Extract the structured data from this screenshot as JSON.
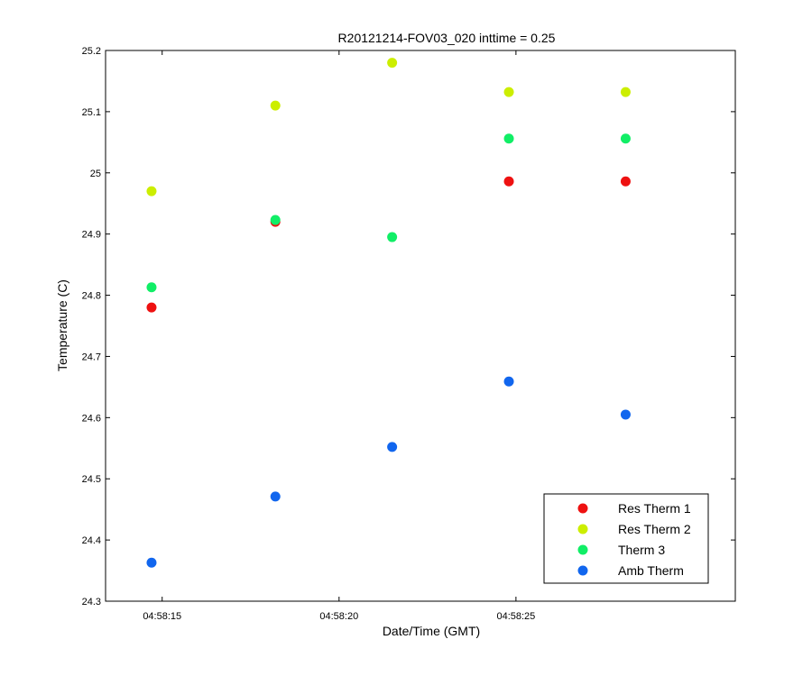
{
  "chart_data": {
    "type": "scatter",
    "title": "R20121214-FOV03_020 inttime = 0.25",
    "xlabel": "Date/Time (GMT)",
    "ylabel": "Temperature (C)",
    "xlim": [
      "04:58:13.4",
      "04:58:31.2"
    ],
    "ylim": [
      24.3,
      25.2
    ],
    "x_ticks": [
      "04:58:15",
      "04:58:20",
      "04:58:25"
    ],
    "y_ticks": [
      "24.3",
      "24.4",
      "24.5",
      "24.6",
      "24.7",
      "24.8",
      "24.9",
      "25",
      "25.1",
      "25.2"
    ],
    "x": [
      "04:58:14.7",
      "04:58:18.2",
      "04:58:21.5",
      "04:58:24.8",
      "04:58:28.1"
    ],
    "series": [
      {
        "name": "Res Therm 1",
        "color": "#ee1111",
        "values": [
          24.78,
          24.92,
          null,
          24.986,
          24.986
        ]
      },
      {
        "name": "Res Therm 2",
        "color": "#ccee00",
        "values": [
          24.97,
          25.11,
          25.18,
          25.132,
          25.132
        ]
      },
      {
        "name": "Therm 3",
        "color": "#11ee66",
        "values": [
          24.813,
          24.923,
          24.895,
          25.056,
          25.056
        ]
      },
      {
        "name": "Amb Therm",
        "color": "#1166ee",
        "values": [
          24.363,
          24.471,
          24.552,
          24.659,
          24.605
        ]
      }
    ],
    "legend": "bottom-right",
    "grid": false
  }
}
